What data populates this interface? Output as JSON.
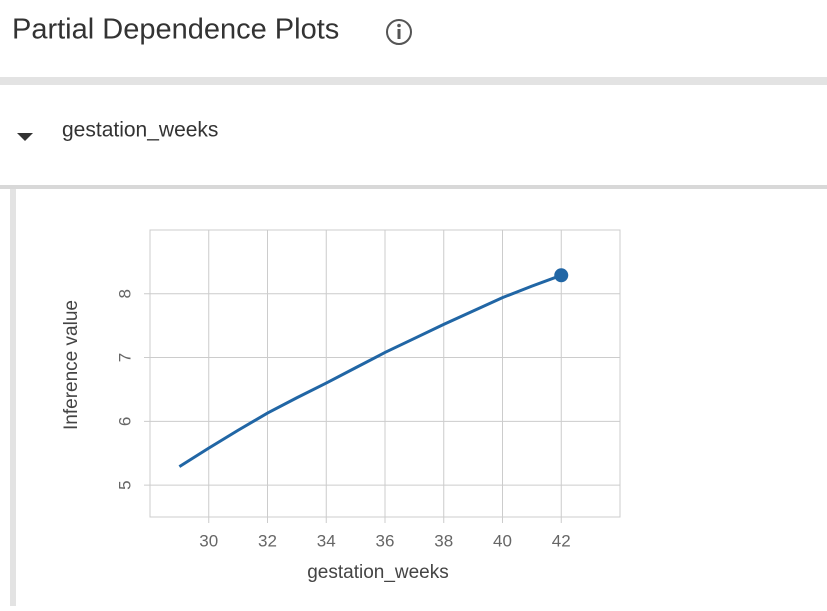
{
  "header": {
    "title": "Partial Dependence Plots"
  },
  "section": {
    "label": "gestation_weeks"
  },
  "chart_data": {
    "type": "line",
    "x_label": "gestation_weeks",
    "y_label": "Inference value",
    "x": [
      29,
      30,
      31,
      32,
      33,
      34,
      35,
      36,
      37,
      38,
      39,
      40,
      41,
      42
    ],
    "series": [
      {
        "name": "gestation_weeks",
        "color": "#2166a5",
        "values": [
          5.29,
          5.58,
          5.86,
          6.13,
          6.37,
          6.6,
          6.84,
          7.08,
          7.3,
          7.52,
          7.73,
          7.94,
          8.12,
          8.29
        ]
      }
    ],
    "xlim": [
      28,
      44
    ],
    "xticks": [
      30,
      32,
      34,
      36,
      38,
      40,
      42
    ],
    "ylim": [
      4.5,
      9
    ],
    "yticks": [
      5,
      6,
      7,
      8
    ],
    "grid": true
  }
}
